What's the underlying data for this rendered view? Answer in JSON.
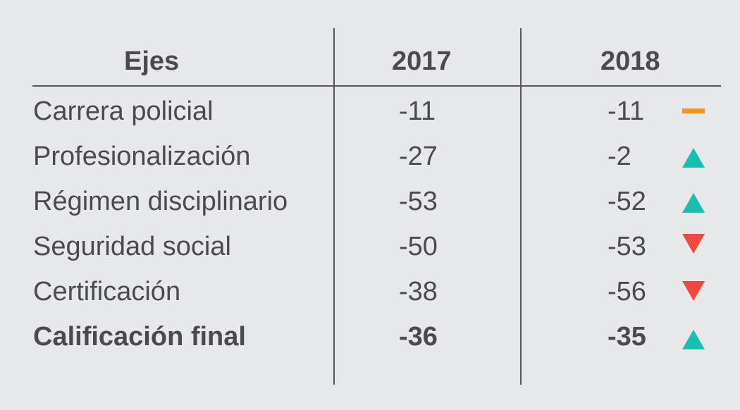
{
  "colors": {
    "background": "#e7e8ea",
    "text": "#4b4b4e",
    "up": "#16bfae",
    "down": "#f2473d",
    "same": "#f7941d"
  },
  "table": {
    "headers": {
      "ejes": "Ejes",
      "y2017": "2017",
      "y2018": "2018"
    },
    "rows": [
      {
        "label": "Carrera policial",
        "v2017": "-11",
        "v2018": "-11",
        "trend": "same-dash-icon"
      },
      {
        "label": "Profesionalización",
        "v2017": "-27",
        "v2018": "-2",
        "trend": "up-triangle-icon"
      },
      {
        "label": "Régimen disciplinario",
        "v2017": "-53",
        "v2018": "-52",
        "trend": "up-triangle-icon"
      },
      {
        "label": "Seguridad social",
        "v2017": "-50",
        "v2018": "-53",
        "trend": "down-triangle-icon"
      },
      {
        "label": "Certificación",
        "v2017": "-38",
        "v2018": "-56",
        "trend": "down-triangle-icon"
      }
    ],
    "final": {
      "label": "Calificación final",
      "v2017": "-36",
      "v2018": "-35",
      "trend": "up-triangle-icon"
    }
  }
}
